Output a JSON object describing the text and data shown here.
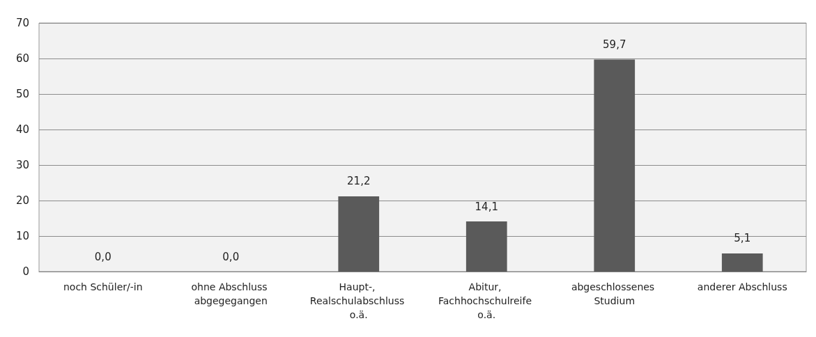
{
  "chart_data": {
    "type": "bar",
    "categories": [
      "noch Schüler/-in",
      "ohne Abschluss abgegegangen",
      "Haupt-, Realschulabschluss o.ä.",
      "Abitur, Fachhochschulreife o.ä.",
      "abgeschlossenes Studium",
      "anderer Abschluss"
    ],
    "values": [
      0.0,
      0.0,
      21.2,
      14.1,
      59.7,
      5.1
    ],
    "value_labels": [
      "0,0",
      "0,0",
      "21,2",
      "14,1",
      "59,7",
      "5,1"
    ],
    "color": "#5a5a5a",
    "ylim": [
      0,
      70
    ],
    "yticks": [
      0,
      10,
      20,
      30,
      40,
      50,
      60,
      70
    ],
    "grid": "y"
  }
}
